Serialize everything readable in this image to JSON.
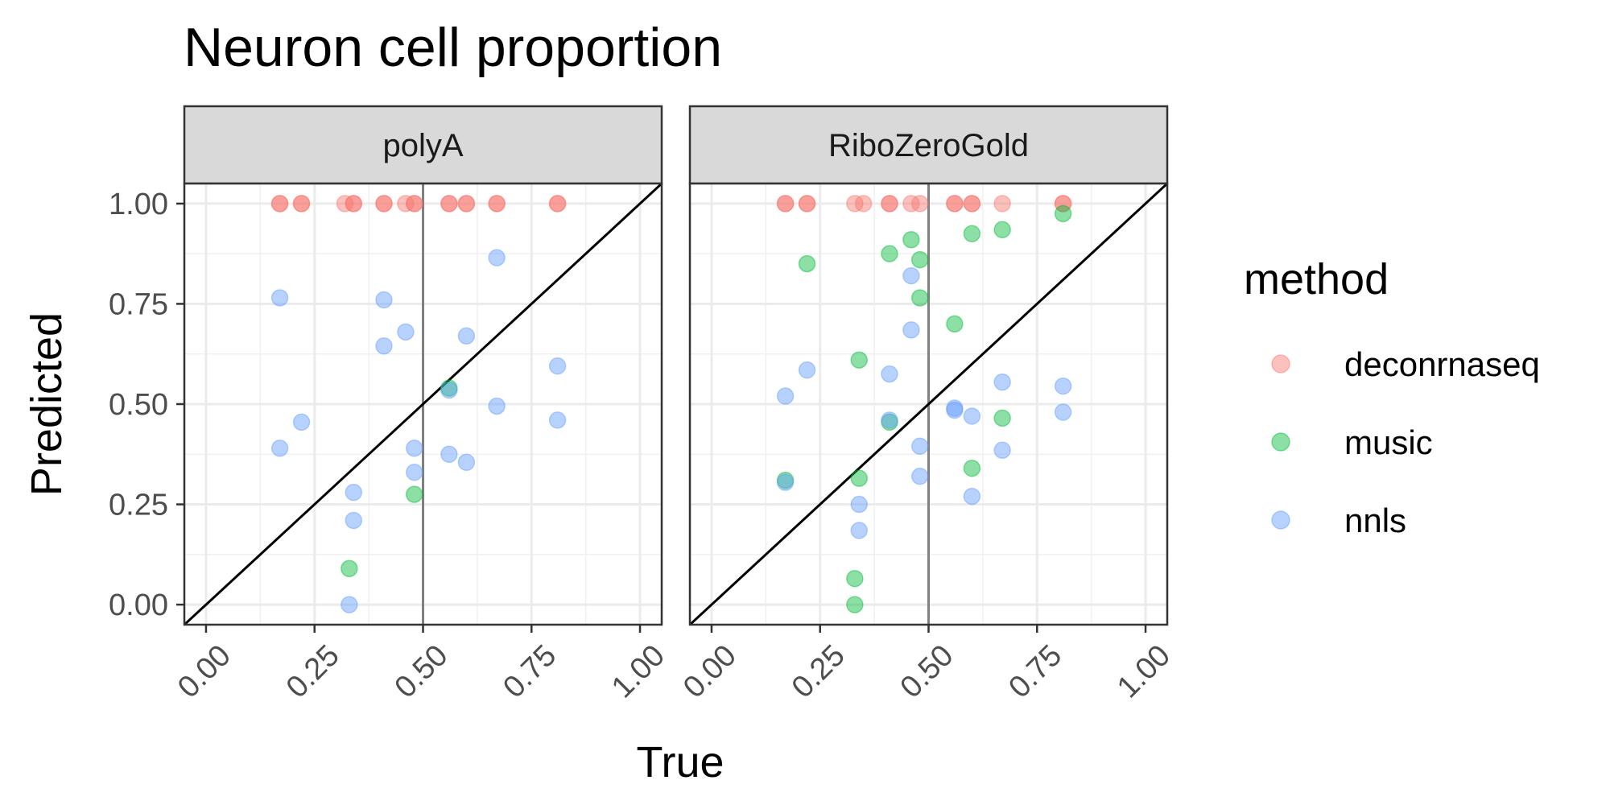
{
  "chart_data": {
    "type": "scatter",
    "title": "Neuron cell proportion",
    "xlabel": "True",
    "ylabel": "Predicted",
    "xlim": [
      -0.05,
      1.05
    ],
    "ylim": [
      -0.05,
      1.05
    ],
    "x_ticks": [
      "0.00",
      "0.25",
      "0.50",
      "0.75",
      "1.00"
    ],
    "y_ticks": [
      "0.00",
      "0.25",
      "0.50",
      "0.75",
      "1.00"
    ],
    "grid": true,
    "reference_lines": [
      "y = x",
      "x = 0.5"
    ],
    "legend": {
      "title": "method",
      "placement": "right",
      "entries": [
        {
          "name": "deconrnaseq",
          "color": "#F8766D"
        },
        {
          "name": "music",
          "color": "#00BA38"
        },
        {
          "name": "nnls",
          "color": "#619CFF"
        }
      ]
    },
    "panels": [
      {
        "name": "polyA",
        "series": [
          {
            "name": "deconrnaseq",
            "points": [
              [
                0.17,
                1.0
              ],
              [
                0.17,
                1.0
              ],
              [
                0.22,
                1.0
              ],
              [
                0.22,
                1.0
              ],
              [
                0.32,
                1.0
              ],
              [
                0.34,
                1.0
              ],
              [
                0.34,
                1.0
              ],
              [
                0.41,
                1.0
              ],
              [
                0.41,
                1.0
              ],
              [
                0.46,
                1.0
              ],
              [
                0.48,
                1.0
              ],
              [
                0.48,
                1.0
              ],
              [
                0.56,
                1.0
              ],
              [
                0.56,
                1.0
              ],
              [
                0.6,
                1.0
              ],
              [
                0.6,
                1.0
              ],
              [
                0.67,
                1.0
              ],
              [
                0.67,
                1.0
              ],
              [
                0.81,
                1.0
              ],
              [
                0.81,
                1.0
              ]
            ]
          },
          {
            "name": "music",
            "points": [
              [
                0.33,
                0.09
              ],
              [
                0.48,
                0.275
              ],
              [
                0.56,
                0.54
              ]
            ]
          },
          {
            "name": "nnls",
            "points": [
              [
                0.17,
                0.765
              ],
              [
                0.17,
                0.39
              ],
              [
                0.22,
                0.455
              ],
              [
                0.33,
                0.0
              ],
              [
                0.34,
                0.28
              ],
              [
                0.34,
                0.21
              ],
              [
                0.41,
                0.76
              ],
              [
                0.41,
                0.645
              ],
              [
                0.46,
                0.68
              ],
              [
                0.48,
                0.39
              ],
              [
                0.48,
                0.33
              ],
              [
                0.56,
                0.535
              ],
              [
                0.56,
                0.375
              ],
              [
                0.6,
                0.67
              ],
              [
                0.6,
                0.355
              ],
              [
                0.67,
                0.865
              ],
              [
                0.67,
                0.495
              ],
              [
                0.81,
                0.595
              ],
              [
                0.81,
                0.46
              ]
            ]
          }
        ]
      },
      {
        "name": "RiboZeroGold",
        "series": [
          {
            "name": "deconrnaseq",
            "points": [
              [
                0.17,
                1.0
              ],
              [
                0.17,
                1.0
              ],
              [
                0.22,
                1.0
              ],
              [
                0.22,
                1.0
              ],
              [
                0.33,
                1.0
              ],
              [
                0.35,
                1.0
              ],
              [
                0.41,
                1.0
              ],
              [
                0.41,
                1.0
              ],
              [
                0.46,
                1.0
              ],
              [
                0.48,
                1.0
              ],
              [
                0.56,
                1.0
              ],
              [
                0.56,
                1.0
              ],
              [
                0.6,
                1.0
              ],
              [
                0.6,
                1.0
              ],
              [
                0.67,
                1.0
              ],
              [
                0.81,
                1.0
              ],
              [
                0.81,
                1.0
              ]
            ]
          },
          {
            "name": "music",
            "points": [
              [
                0.17,
                0.31
              ],
              [
                0.22,
                0.85
              ],
              [
                0.33,
                0.065
              ],
              [
                0.33,
                0.0
              ],
              [
                0.34,
                0.61
              ],
              [
                0.34,
                0.315
              ],
              [
                0.41,
                0.875
              ],
              [
                0.41,
                0.455
              ],
              [
                0.46,
                0.91
              ],
              [
                0.48,
                0.765
              ],
              [
                0.48,
                0.86
              ],
              [
                0.56,
                0.7
              ],
              [
                0.6,
                0.925
              ],
              [
                0.6,
                0.34
              ],
              [
                0.67,
                0.935
              ],
              [
                0.67,
                0.465
              ],
              [
                0.81,
                0.975
              ]
            ]
          },
          {
            "name": "nnls",
            "points": [
              [
                0.17,
                0.52
              ],
              [
                0.17,
                0.305
              ],
              [
                0.22,
                0.585
              ],
              [
                0.34,
                0.25
              ],
              [
                0.34,
                0.185
              ],
              [
                0.41,
                0.575
              ],
              [
                0.41,
                0.46
              ],
              [
                0.46,
                0.82
              ],
              [
                0.46,
                0.685
              ],
              [
                0.48,
                0.395
              ],
              [
                0.48,
                0.32
              ],
              [
                0.56,
                0.49
              ],
              [
                0.56,
                0.485
              ],
              [
                0.6,
                0.47
              ],
              [
                0.6,
                0.27
              ],
              [
                0.67,
                0.555
              ],
              [
                0.67,
                0.385
              ],
              [
                0.81,
                0.545
              ],
              [
                0.81,
                0.48
              ]
            ]
          }
        ]
      }
    ]
  }
}
